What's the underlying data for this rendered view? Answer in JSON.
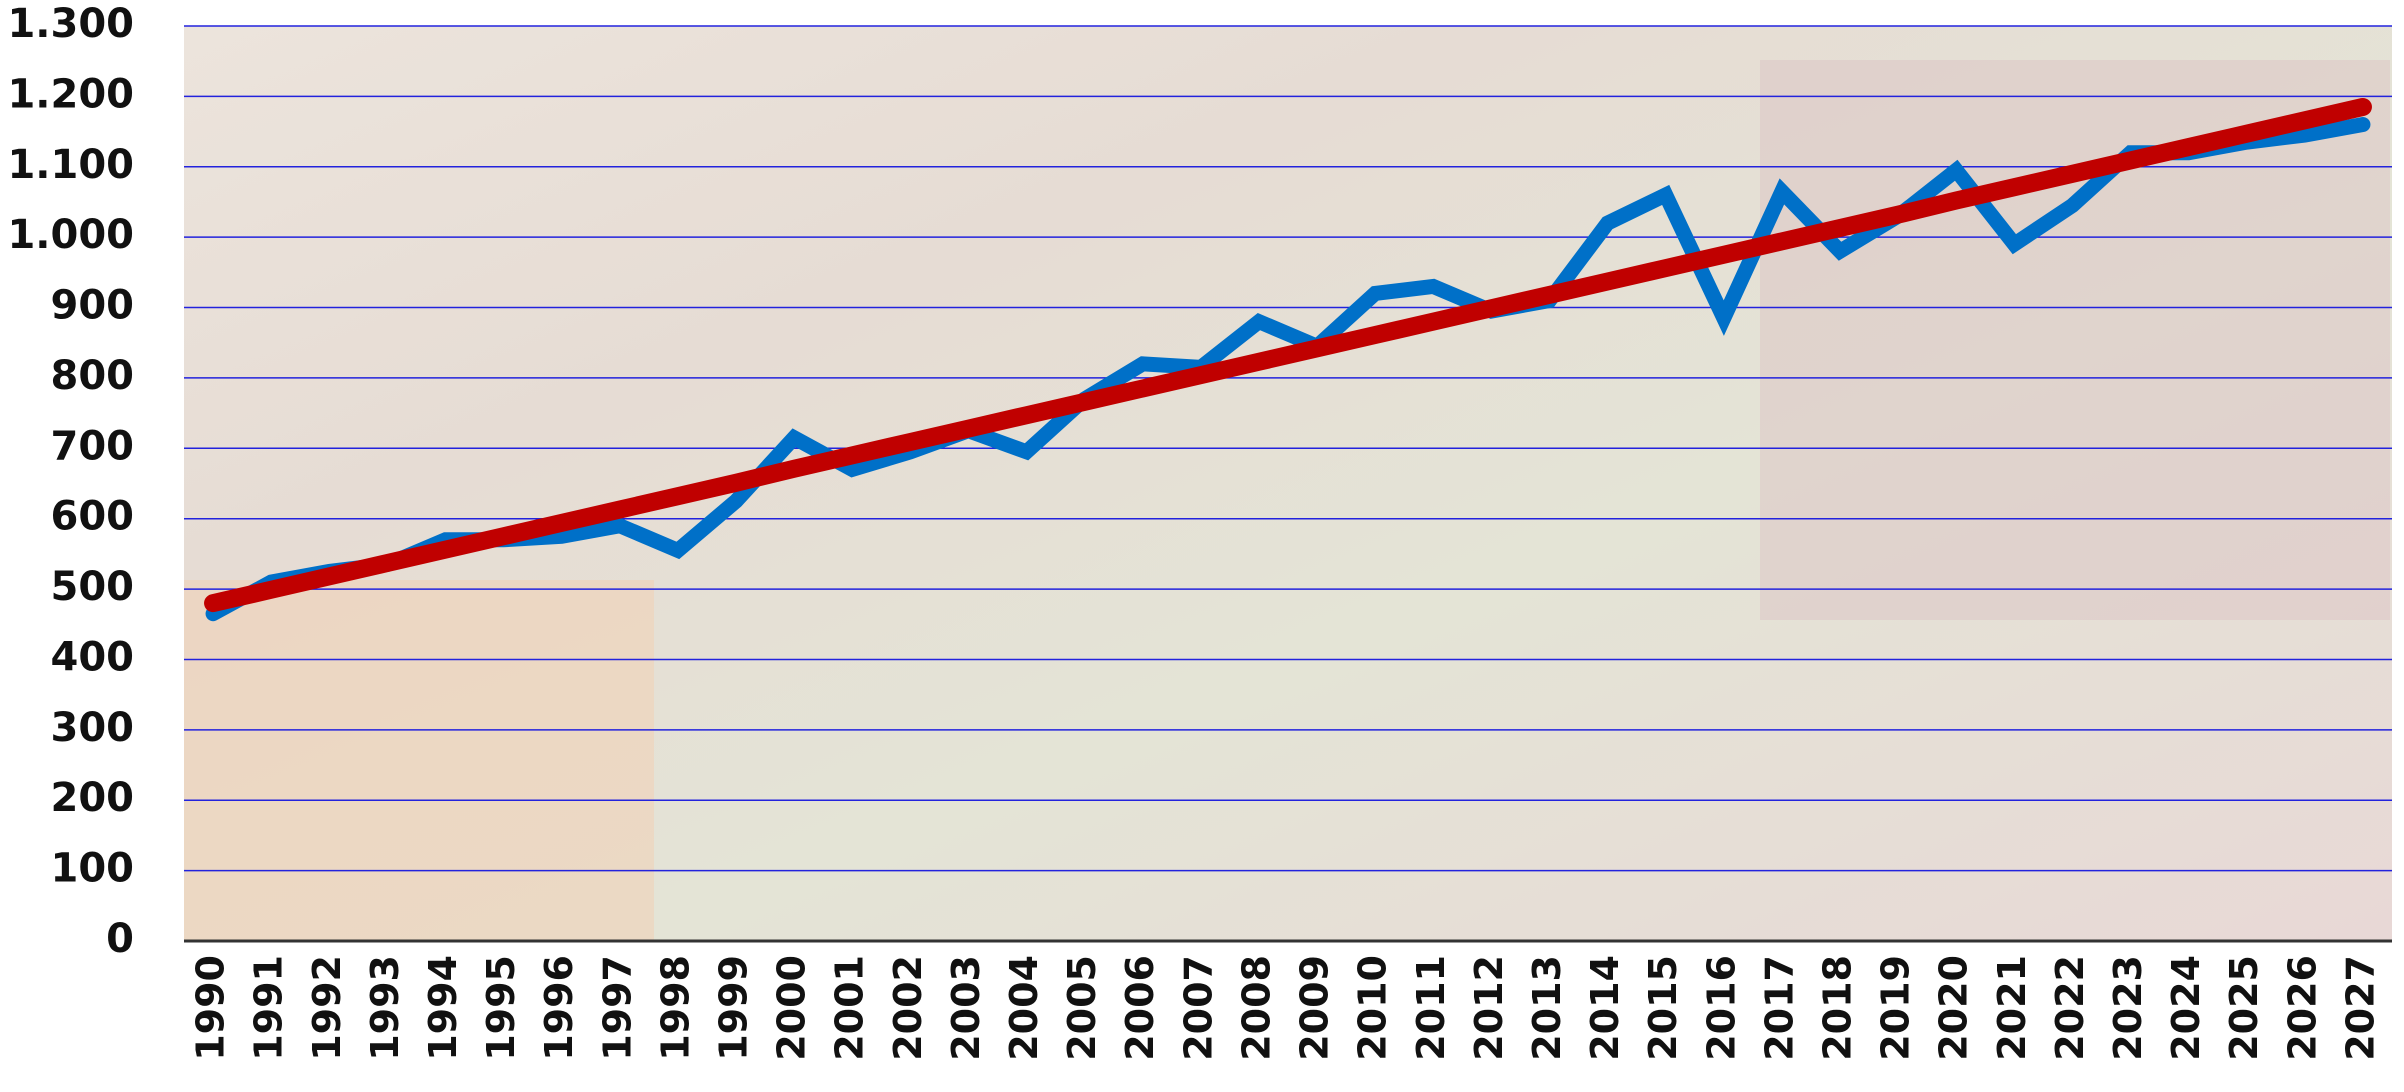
{
  "chart_data": {
    "type": "line",
    "categories": [
      "1990",
      "1991",
      "1992",
      "1993",
      "1994",
      "1995",
      "1996",
      "1997",
      "1998",
      "1999",
      "2000",
      "2001",
      "2002",
      "2003",
      "2004",
      "2005",
      "2006",
      "2007",
      "2008",
      "2009",
      "2010",
      "2011",
      "2012",
      "2013",
      "2014",
      "2015",
      "2016",
      "2017",
      "2018",
      "2019",
      "2020",
      "2021",
      "2022",
      "2023",
      "2024",
      "2025",
      "2026",
      "2027"
    ],
    "series": [
      {
        "color": "#0070c8",
        "values": [
          465,
          510,
          525,
          535,
          570,
          570,
          575,
          590,
          555,
          625,
          715,
          670,
          695,
          725,
          695,
          770,
          820,
          815,
          880,
          845,
          920,
          930,
          895,
          910,
          1020,
          1060,
          885,
          1065,
          980,
          1030,
          1095,
          990,
          1045,
          1120,
          1120,
          1135,
          1145,
          1160
        ]
      },
      {
        "color": "#c00000",
        "values": [
          480,
          499,
          518,
          537,
          556,
          575,
          594,
          613,
          632,
          651,
          671,
          690,
          709,
          728,
          747,
          766,
          785,
          804,
          823,
          842,
          861,
          880,
          899,
          918,
          937,
          956,
          975,
          994,
          1013,
          1032,
          1052,
          1071,
          1090,
          1109,
          1128,
          1147,
          1166,
          1185
        ]
      }
    ],
    "ylim": [
      0,
      1300
    ],
    "yticks": [
      0,
      100,
      200,
      300,
      400,
      500,
      600,
      700,
      800,
      900,
      {
        "value": 1000,
        "label": "1.000"
      },
      {
        "value": 1100,
        "label": "1.100"
      },
      {
        "value": 1200,
        "label": "1.200"
      },
      {
        "value": 1300,
        "label": "1.300"
      }
    ],
    "grid": true
  }
}
